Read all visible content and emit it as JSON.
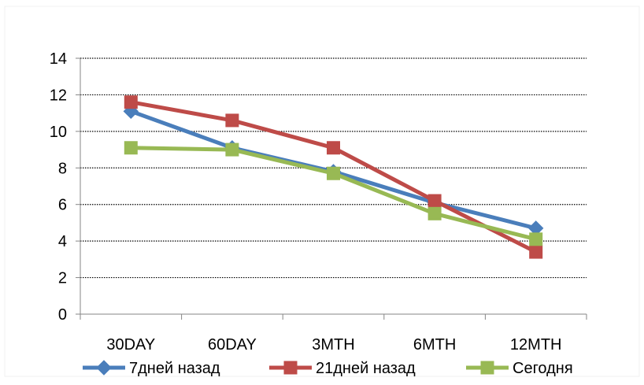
{
  "chart_data": {
    "type": "line",
    "title": "",
    "xlabel": "",
    "ylabel": "",
    "categories": [
      "30DAY",
      "60DAY",
      "3MTH",
      "6MTH",
      "12MTH"
    ],
    "ylim": [
      0,
      14
    ],
    "yticks": [
      0,
      2,
      4,
      6,
      8,
      10,
      12,
      14
    ],
    "grid": true,
    "legend_position": "bottom",
    "series": [
      {
        "name": "7дней назад",
        "values": [
          11.1,
          9.1,
          7.8,
          6.1,
          4.7
        ],
        "color": "#4a7ebb",
        "marker": "diamond"
      },
      {
        "name": "21дней назад",
        "values": [
          11.6,
          10.6,
          9.1,
          6.2,
          3.4
        ],
        "color": "#be4b48",
        "marker": "square"
      },
      {
        "name": "Сегодня",
        "values": [
          9.1,
          9.0,
          7.7,
          5.5,
          4.1
        ],
        "color": "#98b954",
        "marker": "square"
      }
    ]
  }
}
